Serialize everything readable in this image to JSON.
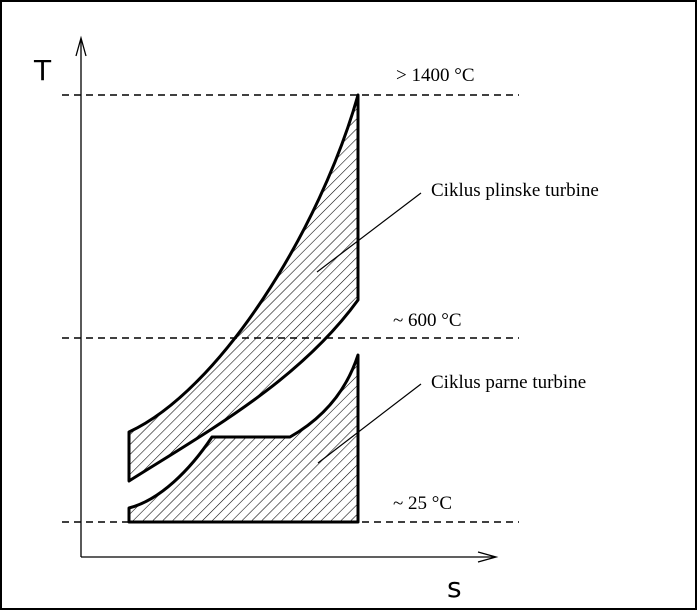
{
  "diagram": {
    "axes": {
      "y_label": "T",
      "x_label": "s"
    },
    "temperature_levels": [
      {
        "id": "t-high",
        "label": "> 1400 °C"
      },
      {
        "id": "t-mid",
        "label": "~ 600 °C"
      },
      {
        "id": "t-low",
        "label": "~ 25 °C"
      }
    ],
    "regions": [
      {
        "id": "gas",
        "label": "Ciklus plinske turbine"
      },
      {
        "id": "steam",
        "label": "Ciklus parne turbine"
      }
    ],
    "colors": {
      "ink": "#000000",
      "frame": "#000000",
      "background": "#ffffff"
    }
  }
}
